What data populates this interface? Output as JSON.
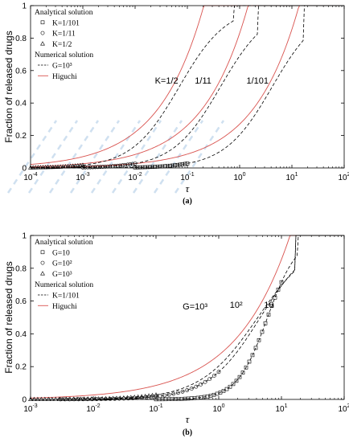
{
  "chart_data": [
    {
      "panel_label": "(a)",
      "type": "line",
      "xlabel": "τ",
      "ylabel": "Fraction of released drugs",
      "xscale": "log",
      "xlim": [
        0.0001,
        100
      ],
      "ylim": [
        0,
        1
      ],
      "xticks": [
        "10-4",
        "10-3",
        "10-2",
        "10-1",
        "100",
        "101",
        "102"
      ],
      "yticks": [
        "0",
        "0.2",
        "0.4",
        "0.6",
        "0.8",
        "1"
      ],
      "grid": false,
      "legend_position": "top-left",
      "legend": [
        {
          "kind": "header",
          "text": "Analytical solution"
        },
        {
          "kind": "square",
          "text": "K=1/101"
        },
        {
          "kind": "circle",
          "text": "K=1/11"
        },
        {
          "kind": "triangle",
          "text": "K=1/2"
        },
        {
          "kind": "header",
          "text": "Numerical solution"
        },
        {
          "kind": "dash",
          "text": "G=10³"
        },
        {
          "kind": "red",
          "text": "Higuchi"
        }
      ],
      "annotations": [
        {
          "text": "K=1/2",
          "x": 0.04,
          "y": 0.52
        },
        {
          "text": "1/11",
          "x": 0.2,
          "y": 0.52
        },
        {
          "text": "1/101",
          "x": 2.2,
          "y": 0.52
        }
      ],
      "numerical_series": [
        {
          "tau50": 0.07,
          "n": 0.95,
          "sat": 0.76
        },
        {
          "tau50": 0.43,
          "n": 0.95,
          "sat": 2.2
        },
        {
          "tau50": 4.2,
          "n": 0.95,
          "sat": 17
        }
      ],
      "higuchi_series": [
        {
          "a": 2.2,
          "sat": 0.42
        },
        {
          "a": 0.83,
          "sat": 2.4
        },
        {
          "a": 0.27,
          "sat": 18
        }
      ],
      "marker_series": [
        {
          "shape": "triangle",
          "series": 0,
          "x_from": 0.0001,
          "x_to": 0.001,
          "count": 22
        },
        {
          "shape": "circle",
          "series": 1,
          "x_from": 0.001,
          "x_to": 0.01,
          "count": 22
        },
        {
          "shape": "square",
          "series": 2,
          "x_from": 0.01,
          "x_to": 0.1,
          "count": 22
        }
      ]
    },
    {
      "panel_label": "(b)",
      "type": "line",
      "xlabel": "τ",
      "ylabel": "Fraction of released drugs",
      "xscale": "log",
      "xlim": [
        0.001,
        100
      ],
      "ylim": [
        0,
        1
      ],
      "xticks": [
        "10-3",
        "10-2",
        "10-1",
        "100",
        "101",
        "102"
      ],
      "yticks": [
        "0",
        "0.2",
        "0.4",
        "0.6",
        "0.8",
        "1"
      ],
      "grid": false,
      "legend_position": "top-left",
      "legend": [
        {
          "kind": "header",
          "text": "Analytical solution"
        },
        {
          "kind": "square",
          "text": "G=10"
        },
        {
          "kind": "circle",
          "text": "G=10²"
        },
        {
          "kind": "triangle",
          "text": "G=10³"
        },
        {
          "kind": "header",
          "text": "Numerical solution"
        },
        {
          "kind": "dash",
          "text": "K=1/101"
        },
        {
          "kind": "red",
          "text": "Higuchi"
        }
      ],
      "annotations": [
        {
          "text": "G=10³",
          "x": 0.42,
          "y": 0.55
        },
        {
          "text": "10²",
          "x": 1.9,
          "y": 0.56
        },
        {
          "text": "10",
          "x": 6.3,
          "y": 0.56
        }
      ],
      "numerical_series": [
        {
          "tau50": 4.2,
          "n": 0.95,
          "sat": 17
        },
        {
          "tau50": 4.6,
          "n": 1.05,
          "sat": 17
        },
        {
          "tau50": 6.0,
          "n": 1.8,
          "sat": 18
        }
      ],
      "higuchi_series": [
        {
          "a": 0.27,
          "sat": 18
        }
      ],
      "marker_series": [
        {
          "shape": "triangle",
          "series": 0,
          "x_from": 0.001,
          "x_to": 0.1,
          "count": 36
        },
        {
          "shape": "circle",
          "series": 1,
          "x_from": 0.003,
          "x_to": 1.0,
          "count": 36
        },
        {
          "shape": "square",
          "series": 2,
          "x_from": 0.1,
          "x_to": 10,
          "count": 40
        }
      ]
    }
  ],
  "colors": {
    "axis": "#000000",
    "numerical": "#000000",
    "higuchi": "#d9534f",
    "marker": "#000000",
    "watermark": "#cfe0f0"
  }
}
